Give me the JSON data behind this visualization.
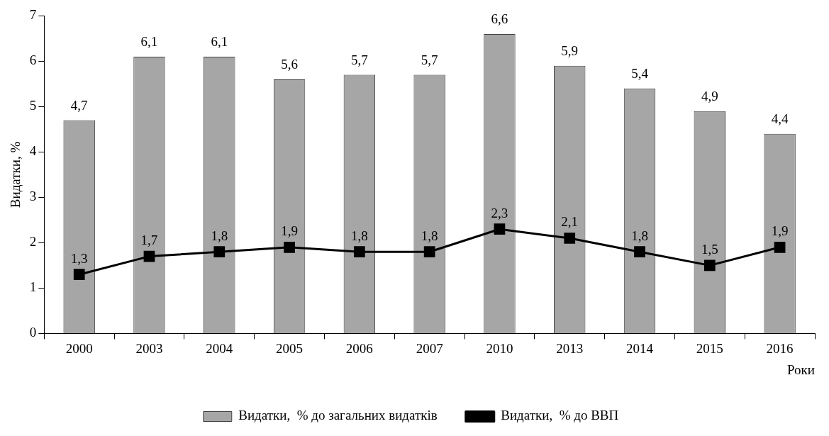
{
  "chart_data": {
    "type": "bar",
    "xlabel": "Роки",
    "ylabel": "Видатки, %",
    "categories": [
      "2000",
      "2003",
      "2004",
      "2005",
      "2006",
      "2007",
      "2010",
      "2013",
      "2014",
      "2015",
      "2016"
    ],
    "series": [
      {
        "name": "Видатки,  % до загальних видатків",
        "color": "#a6a6a6",
        "values": [
          4.7,
          6.1,
          6.1,
          5.6,
          5.7,
          5.7,
          6.6,
          5.9,
          5.4,
          4.9,
          4.4
        ],
        "value_labels": [
          "4,7",
          "6,1",
          "6,1",
          "5,6",
          "5,7",
          "5,7",
          "6,6",
          "5,9",
          "5,4",
          "4,9",
          "4,4"
        ]
      },
      {
        "name": "Видатки,  % до ВВП",
        "type": "line",
        "color": "#000000",
        "values": [
          1.3,
          1.7,
          1.8,
          1.9,
          1.8,
          1.8,
          2.3,
          2.1,
          1.8,
          1.5,
          1.9
        ],
        "value_labels": [
          "1,3",
          "1,7",
          "1,8",
          "1,9",
          "1,8",
          "1,8",
          "2,3",
          "2,1",
          "1,8",
          "1,5",
          "1,9"
        ]
      }
    ],
    "ylim": [
      0,
      7
    ],
    "yticks": [
      0,
      1,
      2,
      3,
      4,
      5,
      6,
      7
    ],
    "grid": false,
    "legend": "bottom",
    "marker": "square",
    "line_style": "solid"
  }
}
